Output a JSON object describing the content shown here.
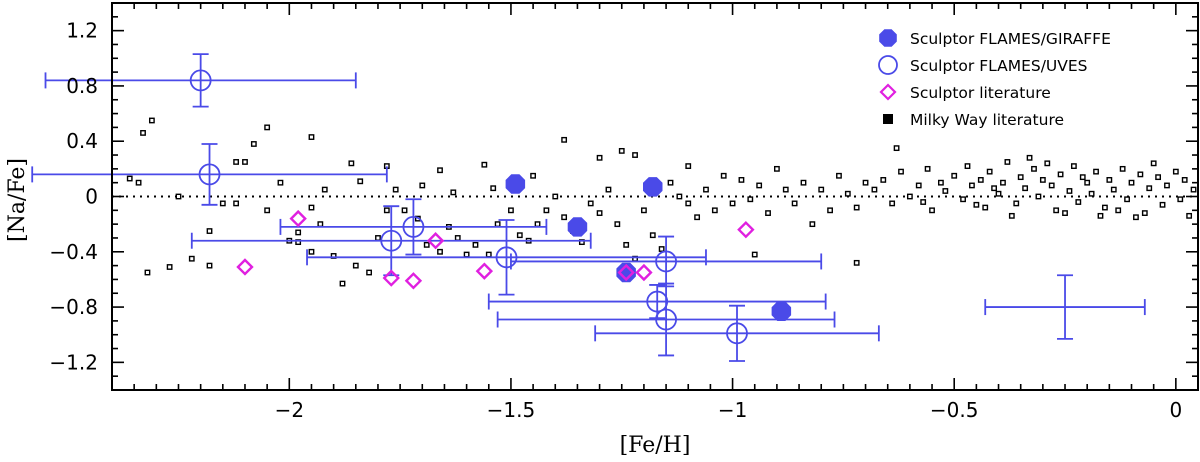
{
  "chart_data": {
    "type": "scatter",
    "xlabel": "[Fe/H]",
    "ylabel": "[Na/Fe]",
    "xlim": [
      -2.4,
      0.05
    ],
    "ylim": [
      -1.4,
      1.4
    ],
    "xticks": [
      -2,
      -1.5,
      -1,
      -0.5,
      0
    ],
    "xtick_labels": [
      "−2",
      "−1.5",
      "−1",
      "−0.5",
      "0"
    ],
    "yticks": [
      1.2,
      0.8,
      0.4,
      0,
      -0.4,
      -0.8,
      -1.2
    ],
    "ytick_labels": [
      "1.2",
      "0.8",
      "0.4",
      "0",
      "−0.4",
      "−0.8",
      "−1.2"
    ],
    "reference_line": 0,
    "colors": {
      "blue": "#4a4ae8",
      "magenta": "#e020e0",
      "black": "#000000"
    },
    "legend": {
      "position": "top-right",
      "entries": [
        {
          "label": "Sculptor FLAMES/GIRAFFE",
          "marker": "filled-octagon",
          "color": "#4a4ae8"
        },
        {
          "label": "Sculptor FLAMES/UVES",
          "marker": "open-circle",
          "color": "#4a4ae8"
        },
        {
          "label": "Sculptor literature",
          "marker": "open-diamond",
          "color": "#e020e0"
        },
        {
          "label": "Milky Way literature",
          "marker": "filled-square",
          "color": "#000000"
        }
      ]
    },
    "series": [
      {
        "name": "Sculptor FLAMES/GIRAFFE",
        "points": [
          {
            "x": -1.49,
            "y": 0.09
          },
          {
            "x": -1.18,
            "y": 0.07
          },
          {
            "x": -1.35,
            "y": -0.22
          },
          {
            "x": -1.24,
            "y": -0.55
          },
          {
            "x": -0.89,
            "y": -0.83
          }
        ]
      },
      {
        "name": "Sculptor FLAMES/UVES",
        "points": [
          {
            "x": -2.2,
            "y": 0.84,
            "xerr": 0.35,
            "yerr": 0.19
          },
          {
            "x": -2.18,
            "y": 0.16,
            "xerr": 0.4,
            "yerr": 0.22
          },
          {
            "x": -1.77,
            "y": -0.32,
            "xerr": 0.45,
            "yerr": 0.25
          },
          {
            "x": -1.72,
            "y": -0.22,
            "xerr": 0.3,
            "yerr": 0.2
          },
          {
            "x": -1.51,
            "y": -0.44,
            "xerr": 0.45,
            "yerr": 0.27
          },
          {
            "x": -1.15,
            "y": -0.47,
            "xerr": 0.35,
            "yerr": 0.18
          },
          {
            "x": -1.17,
            "y": -0.76,
            "xerr": 0.38,
            "yerr": 0.12
          },
          {
            "x": -1.15,
            "y": -0.89,
            "xerr": 0.38,
            "yerr": 0.26
          },
          {
            "x": -0.99,
            "y": -0.99,
            "xerr": 0.32,
            "yerr": 0.2
          }
        ]
      },
      {
        "name": "Sculptor literature",
        "points": [
          {
            "x": -2.1,
            "y": -0.51
          },
          {
            "x": -1.98,
            "y": -0.16
          },
          {
            "x": -1.77,
            "y": -0.59
          },
          {
            "x": -1.72,
            "y": -0.61
          },
          {
            "x": -1.67,
            "y": -0.32
          },
          {
            "x": -1.56,
            "y": -0.54
          },
          {
            "x": -1.24,
            "y": -0.55
          },
          {
            "x": -1.2,
            "y": -0.55
          },
          {
            "x": -0.97,
            "y": -0.24
          }
        ]
      },
      {
        "name": "Milky Way literature",
        "points": [
          [
            -2.31,
            0.55
          ],
          [
            -2.33,
            0.46
          ],
          [
            -2.36,
            0.13
          ],
          [
            -2.34,
            0.1
          ],
          [
            -2.25,
            0.0
          ],
          [
            -2.32,
            -0.55
          ],
          [
            -2.27,
            -0.51
          ],
          [
            -2.18,
            -0.5
          ],
          [
            -2.15,
            -0.05
          ],
          [
            -2.18,
            -0.25
          ],
          [
            -2.22,
            -0.45
          ],
          [
            -2.05,
            0.5
          ],
          [
            -2.08,
            0.38
          ],
          [
            -2.1,
            0.25
          ],
          [
            -2.12,
            -0.05
          ],
          [
            -2.05,
            -0.1
          ],
          [
            -1.95,
            -0.08
          ],
          [
            -1.98,
            -0.33
          ],
          [
            -1.95,
            -0.4
          ],
          [
            -1.93,
            -0.2
          ],
          [
            -2.02,
            0.1
          ],
          [
            -2.0,
            -0.32
          ],
          [
            -1.9,
            -0.43
          ],
          [
            -1.88,
            -0.63
          ],
          [
            -1.85,
            -0.5
          ],
          [
            -1.82,
            -0.55
          ],
          [
            -1.8,
            -0.3
          ],
          [
            -1.78,
            -0.1
          ],
          [
            -1.76,
            0.05
          ],
          [
            -1.74,
            -0.1
          ],
          [
            -1.71,
            -0.16
          ],
          [
            -1.69,
            -0.35
          ],
          [
            -1.66,
            -0.4
          ],
          [
            -1.64,
            -0.22
          ],
          [
            -1.62,
            -0.3
          ],
          [
            -1.6,
            -0.42
          ],
          [
            -1.58,
            -0.35
          ],
          [
            -1.55,
            -0.42
          ],
          [
            -1.53,
            -0.2
          ],
          [
            -1.5,
            -0.1
          ],
          [
            -1.48,
            -0.28
          ],
          [
            -1.46,
            -0.32
          ],
          [
            -1.44,
            -0.2
          ],
          [
            -1.42,
            -0.1
          ],
          [
            -1.4,
            0.0
          ],
          [
            -1.38,
            -0.15
          ],
          [
            -1.36,
            -0.25
          ],
          [
            -1.34,
            -0.33
          ],
          [
            -1.32,
            -0.05
          ],
          [
            -1.3,
            -0.12
          ],
          [
            -1.28,
            0.05
          ],
          [
            -1.26,
            -0.2
          ],
          [
            -1.24,
            -0.35
          ],
          [
            -1.22,
            -0.45
          ],
          [
            -1.2,
            -0.1
          ],
          [
            -1.18,
            -0.28
          ],
          [
            -1.16,
            -0.38
          ],
          [
            -1.14,
            0.1
          ],
          [
            -1.12,
            0.0
          ],
          [
            -1.1,
            -0.05
          ],
          [
            -1.08,
            -0.15
          ],
          [
            -1.06,
            0.05
          ],
          [
            -1.04,
            -0.1
          ],
          [
            -1.02,
            0.15
          ],
          [
            -1.0,
            -0.05
          ],
          [
            -0.98,
            0.12
          ],
          [
            -0.96,
            -0.02
          ],
          [
            -0.94,
            0.08
          ],
          [
            -0.92,
            -0.12
          ],
          [
            -0.9,
            0.2
          ],
          [
            -0.88,
            0.05
          ],
          [
            -0.86,
            -0.05
          ],
          [
            -0.84,
            0.1
          ],
          [
            -0.82,
            -0.2
          ],
          [
            -0.8,
            0.05
          ],
          [
            -0.78,
            -0.1
          ],
          [
            -0.76,
            0.15
          ],
          [
            -0.74,
            0.02
          ],
          [
            -0.72,
            -0.08
          ],
          [
            -0.7,
            0.1
          ],
          [
            -0.72,
            -0.48
          ],
          [
            -0.95,
            -0.42
          ],
          [
            -1.25,
            0.33
          ],
          [
            -1.38,
            0.41
          ],
          [
            -1.86,
            0.24
          ],
          [
            -1.78,
            0.22
          ],
          [
            -1.66,
            0.19
          ],
          [
            -1.56,
            0.23
          ],
          [
            -1.45,
            0.15
          ],
          [
            -1.3,
            0.28
          ],
          [
            -1.22,
            0.3
          ],
          [
            -1.1,
            0.22
          ],
          [
            -1.95,
            0.43
          ],
          [
            -2.12,
            0.25
          ],
          [
            -1.98,
            -0.26
          ],
          [
            -1.92,
            0.05
          ],
          [
            -1.84,
            0.11
          ],
          [
            -1.7,
            0.08
          ],
          [
            -1.63,
            0.03
          ],
          [
            -1.54,
            0.06
          ],
          [
            -0.68,
            0.05
          ],
          [
            -0.66,
            0.12
          ],
          [
            -0.64,
            -0.05
          ],
          [
            -0.63,
            0.35
          ],
          [
            -0.62,
            0.18
          ],
          [
            -0.6,
            0.0
          ],
          [
            -0.58,
            0.08
          ],
          [
            -0.56,
            0.2
          ],
          [
            -0.55,
            -0.1
          ],
          [
            -0.53,
            0.1
          ],
          [
            -0.52,
            0.04
          ],
          [
            -0.5,
            0.15
          ],
          [
            -0.48,
            -0.02
          ],
          [
            -0.47,
            0.22
          ],
          [
            -0.46,
            0.08
          ],
          [
            -0.44,
            0.12
          ],
          [
            -0.43,
            -0.08
          ],
          [
            -0.42,
            0.18
          ],
          [
            -0.4,
            0.02
          ],
          [
            -0.39,
            0.1
          ],
          [
            -0.38,
            0.25
          ],
          [
            -0.36,
            -0.05
          ],
          [
            -0.35,
            0.14
          ],
          [
            -0.34,
            0.06
          ],
          [
            -0.32,
            0.2
          ],
          [
            -0.31,
            0.0
          ],
          [
            -0.3,
            0.12
          ],
          [
            -0.28,
            0.08
          ],
          [
            -0.27,
            -0.1
          ],
          [
            -0.26,
            0.16
          ],
          [
            -0.24,
            0.04
          ],
          [
            -0.23,
            0.22
          ],
          [
            -0.22,
            -0.04
          ],
          [
            -0.2,
            0.1
          ],
          [
            -0.19,
            0.02
          ],
          [
            -0.18,
            0.18
          ],
          [
            -0.16,
            -0.08
          ],
          [
            -0.15,
            0.12
          ],
          [
            -0.14,
            0.05
          ],
          [
            -0.12,
            0.2
          ],
          [
            -0.11,
            -0.02
          ],
          [
            -0.1,
            0.1
          ],
          [
            -0.08,
            0.16
          ],
          [
            -0.07,
            -0.12
          ],
          [
            -0.06,
            0.06
          ],
          [
            -0.04,
            0.14
          ],
          [
            -0.03,
            -0.06
          ],
          [
            -0.02,
            0.08
          ],
          [
            0.0,
            0.18
          ],
          [
            0.01,
            -0.02
          ],
          [
            0.02,
            0.12
          ],
          [
            0.03,
            -0.14
          ],
          [
            0.04,
            0.05
          ],
          [
            -0.57,
            -0.04
          ],
          [
            -0.45,
            -0.06
          ],
          [
            -0.33,
            0.28
          ],
          [
            -0.25,
            -0.12
          ],
          [
            -0.17,
            -0.14
          ],
          [
            -0.09,
            -0.15
          ],
          [
            -0.05,
            0.24
          ],
          [
            -0.41,
            0.06
          ],
          [
            -0.37,
            -0.14
          ],
          [
            -0.29,
            0.24
          ],
          [
            -0.21,
            0.14
          ],
          [
            -0.13,
            -0.1
          ]
        ]
      }
    ],
    "typical_error": {
      "x": -0.25,
      "y": -0.8,
      "xerr": 0.18,
      "yerr": 0.23
    }
  }
}
